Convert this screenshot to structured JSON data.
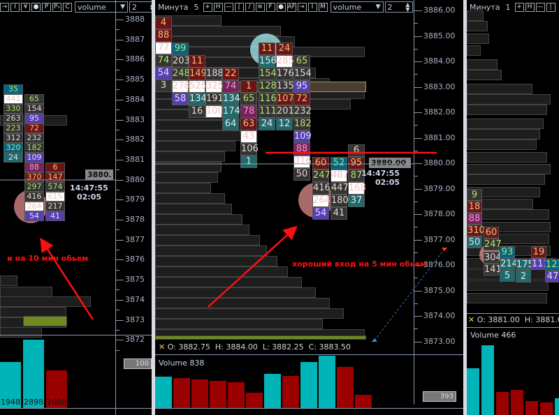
{
  "colors": {
    "buy": "#00b4b8",
    "sell": "#9a0000",
    "annotation": "#ff1010",
    "level_line": "#ff1010",
    "profile_highlight": "#6e8a20"
  },
  "left": {
    "toolbar": [
      "→",
      "I",
      "¥",
      "●",
      "P",
      "Pₙ",
      "C"
    ],
    "indicator_select": "volume",
    "spin_value": "2",
    "price_labels": [
      "3888",
      "3887",
      "3886",
      "3885",
      "3884",
      "3883",
      "3882",
      "3881",
      "3880",
      "3879",
      "3878",
      "3877",
      "3876",
      "3875",
      "3874",
      "3873",
      "3872"
    ],
    "price_tag": "3880.",
    "time": "14:47:55",
    "countdown": "02:05",
    "annotation": "и на 10 мин обьем",
    "columns": [
      {
        "top": 3884.75,
        "cells": [
          [
            "35",
            "b"
          ],
          [
            "441",
            "w"
          ],
          [
            "330",
            "g"
          ],
          [
            "263",
            "n"
          ],
          [
            "223",
            "g"
          ],
          [
            "312",
            "n"
          ],
          [
            "320",
            "b"
          ],
          [
            "24",
            "t"
          ]
        ]
      },
      {
        "top": 3884.25,
        "cells": [
          [
            "65",
            "g"
          ],
          [
            "154",
            "n"
          ],
          [
            "95",
            "p"
          ],
          [
            "72",
            "r"
          ],
          [
            "232",
            "n"
          ],
          [
            "182",
            "g"
          ],
          [
            "109",
            "p"
          ],
          [
            "88",
            "m"
          ],
          [
            "370",
            "r"
          ],
          [
            "297",
            "g"
          ],
          [
            "416",
            "n"
          ],
          [
            "264",
            "w"
          ],
          [
            "54",
            "p"
          ]
        ]
      },
      {
        "top": 3880.75,
        "cells": [
          [
            "6",
            "r"
          ],
          [
            "147",
            "r"
          ],
          [
            "574",
            "g"
          ],
          [
            "615",
            "w"
          ],
          [
            "217",
            "n"
          ],
          [
            "41",
            "p"
          ]
        ]
      }
    ],
    "volume": {
      "bars": [
        {
          "v": 1948,
          "c": "buy"
        },
        {
          "v": 2898,
          "c": "buy"
        },
        {
          "v": 1600,
          "c": "sell"
        }
      ],
      "scale_box": "100"
    }
  },
  "middle": {
    "title": "Минута",
    "timeframe": "5",
    "toolbar": [
      "+",
      "H",
      "—",
      "|",
      "/",
      "≡",
      "F",
      "●",
      "AF",
      "→",
      "I",
      "M"
    ],
    "indicator_select": "volume",
    "spin_value": "2",
    "price_labels": [
      "3886.00",
      "3885.00",
      "3884.00",
      "3883.00",
      "3882.00",
      "3881.00",
      "3880.00",
      "3879.00",
      "3878.00",
      "3877.00",
      "3876.00",
      "3875.00",
      "3874.00",
      "3873.00"
    ],
    "price_tag": "3880.00",
    "time": "14:47:55",
    "countdown": "02:05",
    "annotation": "хороший вход на 5 мин обьем",
    "ohlc": {
      "o": "O: 3882.75",
      "h": "H: 3884.00",
      "l": "L: 3882.25",
      "c": "C: 3883.50"
    },
    "columns": [
      {
        "top": 3885.75,
        "cells": [
          [
            "4",
            "r"
          ],
          [
            "88",
            "r"
          ],
          [
            "77",
            "w"
          ],
          [
            "74",
            "g"
          ],
          [
            "54",
            "p"
          ],
          [
            "3",
            "n"
          ]
        ]
      },
      {
        "top": 3884.75,
        "cells": [
          [
            "99",
            "b"
          ],
          [
            "203",
            "n"
          ],
          [
            "248",
            "g"
          ],
          [
            "278",
            "w"
          ],
          [
            "58",
            "p"
          ]
        ]
      },
      {
        "top": 3884.25,
        "cells": [
          [
            "11",
            "r"
          ],
          [
            "149",
            "r"
          ],
          [
            "525",
            "w"
          ],
          [
            "134",
            "t"
          ],
          [
            "16",
            "n"
          ]
        ]
      },
      {
        "top": 3883.75,
        "cells": [
          [
            "188",
            "n"
          ],
          [
            "325",
            "w"
          ],
          [
            "191",
            "n"
          ],
          [
            "100",
            "w"
          ]
        ]
      },
      {
        "top": 3883.75,
        "cells": [
          [
            "22",
            "r"
          ],
          [
            "74",
            "m"
          ],
          [
            "134",
            "t"
          ],
          [
            "174",
            "t"
          ],
          [
            "64",
            "t"
          ]
        ]
      },
      {
        "top": 3883.25,
        "cells": [
          [
            "1",
            "r"
          ],
          [
            "65",
            "g"
          ],
          [
            "78",
            "m"
          ],
          [
            "63",
            "r"
          ],
          [
            "43",
            "w"
          ],
          [
            "106",
            "n"
          ],
          [
            "1",
            "t"
          ]
        ]
      },
      {
        "top": 3884.75,
        "cells": [
          [
            "11",
            "r"
          ],
          [
            "156",
            "t"
          ],
          [
            "154",
            "g"
          ],
          [
            "128",
            "g"
          ],
          [
            "116",
            "g"
          ],
          [
            "111",
            "g"
          ],
          [
            "24",
            "t"
          ]
        ]
      },
      {
        "top": 3884.75,
        "cells": [
          [
            "24",
            "r"
          ],
          [
            "285",
            "w"
          ],
          [
            "176",
            "n"
          ],
          [
            "135",
            "n"
          ],
          [
            "107",
            "r"
          ],
          [
            "201",
            "n"
          ],
          [
            "12",
            "t"
          ]
        ]
      },
      {
        "top": 3884.25,
        "cells": [
          [
            "65",
            "g"
          ],
          [
            "154",
            "n"
          ],
          [
            "95",
            "p"
          ],
          [
            "72",
            "r"
          ],
          [
            "232",
            "n"
          ],
          [
            "182",
            "g"
          ],
          [
            "109",
            "p"
          ],
          [
            "88",
            "m"
          ],
          [
            "316",
            "w"
          ],
          [
            "50",
            "n"
          ]
        ]
      },
      {
        "top": 3880.25,
        "cells": [
          [
            "60",
            "r"
          ],
          [
            "247",
            "g"
          ],
          [
            "416",
            "n"
          ],
          [
            "264",
            "w"
          ],
          [
            "54",
            "p"
          ]
        ]
      },
      {
        "top": 3880.25,
        "cells": [
          [
            "52",
            "b"
          ],
          [
            "487",
            "w"
          ],
          [
            "447",
            "n"
          ],
          [
            "180",
            "n"
          ],
          [
            "41",
            "n"
          ]
        ]
      },
      {
        "top": 3880.75,
        "cells": [
          [
            "6",
            "n"
          ],
          [
            "95",
            "r"
          ],
          [
            "87",
            "g"
          ],
          [
            "168",
            "w"
          ],
          [
            "37",
            "t"
          ]
        ]
      }
    ],
    "profile": [
      95,
      180,
      200,
      300,
      220,
      230,
      250,
      300,
      280,
      200,
      160,
      130,
      115,
      100,
      95,
      90,
      80,
      100,
      110,
      125,
      135,
      150,
      160,
      175,
      190,
      210,
      230,
      250,
      270,
      240,
      300
    ],
    "volume": {
      "label": "Volume 838",
      "scale_box": "393",
      "bars": [
        {
          "v": 901,
          "c": "buy"
        },
        {
          "v": 867,
          "c": "sell"
        },
        {
          "v": 827,
          "c": "sell"
        },
        {
          "v": 793,
          "c": "sell"
        },
        {
          "v": 759,
          "c": "sell"
        },
        {
          "v": 447,
          "c": "sell"
        },
        {
          "v": 989,
          "c": "buy"
        },
        {
          "v": 922,
          "c": "sell"
        },
        {
          "v": 1335,
          "c": "buy"
        },
        {
          "v": 1518,
          "c": "buy"
        },
        {
          "v": 1193,
          "c": "sell"
        },
        {
          "v": 393,
          "c": "sell"
        }
      ]
    }
  },
  "right": {
    "title": "Минута",
    "timeframe": "1",
    "toolbar": [
      "+",
      "H",
      "—",
      "|"
    ],
    "ohlc": {
      "o": "O: 3881.00",
      "h": "H: 3881.00"
    },
    "columns": [
      {
        "top": 3879.0,
        "cells": [
          [
            "9",
            "g"
          ],
          [
            "18",
            "r"
          ],
          [
            "88",
            "m"
          ],
          [
            "310",
            "r"
          ],
          [
            "50",
            "t"
          ]
        ]
      },
      {
        "top": 3877.5,
        "cells": [
          [
            "60",
            "r"
          ],
          [
            "247",
            "g"
          ]
        ]
      },
      {
        "top": 3876.75,
        "cells": [
          [
            "304",
            "n"
          ],
          [
            "141",
            "n"
          ]
        ]
      },
      {
        "top": 3876.75,
        "cells": [
          [
            "93",
            "b"
          ],
          [
            "214",
            "t"
          ],
          [
            "5",
            "t"
          ]
        ]
      },
      {
        "top": 3876.25,
        "cells": [
          [
            "175",
            "t"
          ],
          [
            "2",
            "t"
          ]
        ]
      },
      {
        "top": 3876.75,
        "cells": [
          [
            "19",
            "r"
          ],
          [
            "111",
            "p"
          ]
        ]
      },
      {
        "top": 3876.25,
        "cells": [
          [
            "123",
            "b"
          ],
          [
            "47",
            "p"
          ]
        ]
      }
    ],
    "volume": {
      "label": "Volume 466",
      "bars": [
        {
          "v": 60,
          "c": "buy"
        },
        {
          "v": 90,
          "c": "buy"
        },
        {
          "v": 30,
          "c": "sell"
        },
        {
          "v": 32,
          "c": "sell"
        },
        {
          "v": 18,
          "c": "sell"
        },
        {
          "v": 16,
          "c": "sell"
        },
        {
          "v": 22,
          "c": "buy"
        }
      ]
    }
  }
}
